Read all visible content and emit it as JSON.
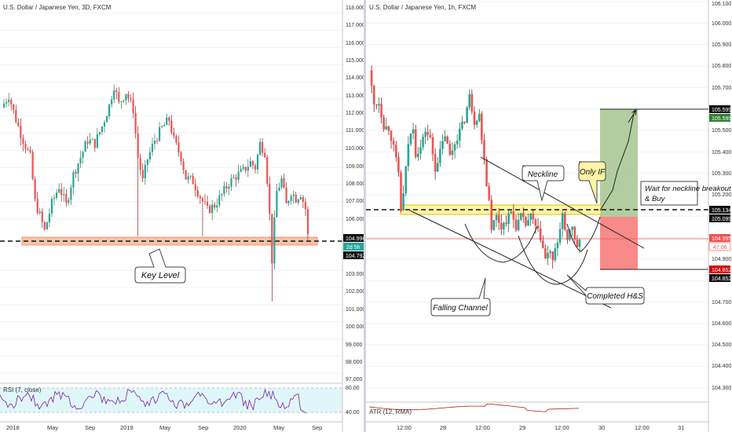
{
  "colors": {
    "up": "#26a69a",
    "down": "#ef5350",
    "upWick": "#1b5e20",
    "downWick": "#7f0000",
    "keyLevelBand": "#f8c2a8",
    "keyLevelBorder": "#f0946d",
    "necklineBand": "#fff3a8",
    "necklineBorder": "#d8c700",
    "target": "#a5c68f",
    "stop": "#f77d7d",
    "rsiLine": "#7b1fa2",
    "rsiBand": "#e0f7fa",
    "atrLine": "#b71c1c",
    "grid": "#f0f3fa",
    "axisText": "#333333"
  },
  "left_panel": {
    "title": "U.S. Dollar / Japanese Yen, 3D, FXCM",
    "price_labels": [
      "118.000",
      "117.000",
      "116.000",
      "115.000",
      "114.000",
      "113.000",
      "112.000",
      "111.000",
      "110.000",
      "109.000",
      "108.000",
      "107.000",
      "106.000",
      "104.996",
      "104.792",
      "103.000",
      "102.000",
      "101.000",
      "100.000",
      "99.000",
      "98.000",
      "97.000"
    ],
    "badge_price": "104.996",
    "badge_countdown": "2d 5h",
    "badge_level": "104.792",
    "time_labels": [
      "2018",
      "May",
      "Sep",
      "2019",
      "May",
      "Sep",
      "2020",
      "May",
      "Sep"
    ],
    "annotation_key_level": "Key Level",
    "rsi_label": "RSI (7, close)",
    "rsi_levels": [
      "80.00",
      "40.00"
    ]
  },
  "right_panel": {
    "title": "U.S. Dollar / Japanese Yen, 1h, FXCM",
    "price_labels": [
      "106.100",
      "106.000",
      "105.900",
      "105.800",
      "105.700",
      "105.600",
      "105.500",
      "105.400",
      "105.300",
      "105.200",
      "105.100",
      "105.000",
      "104.900",
      "104.800",
      "104.700",
      "104.600",
      "104.500",
      "104.400",
      "104.300"
    ],
    "badge_target_top": "105.599",
    "badge_target_bottom": "105.599",
    "badge_neckline": "105.134",
    "badge_entry": "105.099",
    "badge_price": "104.995",
    "badge_countdown": "47:06",
    "badge_stop_top": "104.852",
    "badge_stop_bottom": "104.852",
    "time_labels": [
      "12:00",
      "28",
      "12:00",
      "29",
      "12:00",
      "30",
      "12:00",
      "31"
    ],
    "annotation_neckline": "Neckline",
    "annotation_only_if": "Only IF",
    "annotation_wait": "Wait for neckline breakout & Buy",
    "annotation_falling_channel": "Falling Channel",
    "annotation_completed_hs": "Completed H&S",
    "atr_label": "ATR (12, RMA)"
  },
  "chart_data": [
    {
      "type": "candlestick",
      "title": "U.S. Dollar / Japanese Yen, 3D, FXCM",
      "ylim": [
        96.6,
        118.4
      ],
      "y_ticks": [
        118,
        117,
        116,
        115,
        114,
        113,
        112,
        111,
        110,
        109,
        108,
        107,
        106,
        103,
        102,
        101,
        100,
        99,
        98,
        97
      ],
      "x_ticks": [
        "2018",
        "May",
        "Sep",
        "2019",
        "May",
        "Sep",
        "2020",
        "May",
        "Sep"
      ],
      "close_path_approx": [
        [
          0,
          112.5
        ],
        [
          3,
          113.2
        ],
        [
          6,
          111.8
        ],
        [
          9,
          110.6
        ],
        [
          12,
          109.6
        ],
        [
          14,
          107.0
        ],
        [
          16,
          106.2
        ],
        [
          18,
          105.3
        ],
        [
          21,
          106.9
        ],
        [
          24,
          107.9
        ],
        [
          27,
          106.8
        ],
        [
          30,
          108.6
        ],
        [
          33,
          109.6
        ],
        [
          36,
          110.6
        ],
        [
          39,
          110.4
        ],
        [
          42,
          111.4
        ],
        [
          45,
          112.6
        ],
        [
          47,
          113.8
        ],
        [
          49,
          112.7
        ],
        [
          52,
          113.4
        ],
        [
          55,
          112.4
        ],
        [
          57,
          109.6
        ],
        [
          59,
          108.2
        ],
        [
          61,
          109.5
        ],
        [
          64,
          110.6
        ],
        [
          67,
          111.3
        ],
        [
          70,
          111.8
        ],
        [
          72,
          110.6
        ],
        [
          75,
          109.6
        ],
        [
          77,
          108.4
        ],
        [
          80,
          108.2
        ],
        [
          83,
          107.3
        ],
        [
          86,
          106.5
        ],
        [
          89,
          106.8
        ],
        [
          92,
          107.4
        ],
        [
          95,
          108.1
        ],
        [
          98,
          108.5
        ],
        [
          101,
          108.8
        ],
        [
          104,
          109.3
        ],
        [
          106,
          109.0
        ],
        [
          108,
          110.4
        ],
        [
          110,
          109.9
        ],
        [
          111,
          108.3
        ],
        [
          112,
          106.2
        ],
        [
          113,
          103.6
        ],
        [
          114,
          105.8
        ],
        [
          115,
          107.6
        ],
        [
          117,
          108.3
        ],
        [
          119,
          106.8
        ],
        [
          121,
          107.6
        ],
        [
          123,
          107.2
        ],
        [
          125,
          107.5
        ],
        [
          127,
          106.6
        ],
        [
          128,
          105.0
        ]
      ],
      "annotations": [
        "Key Level"
      ],
      "key_level_band": [
        104.8,
        105.2
      ],
      "key_level_line": 104.996
    },
    {
      "type": "line",
      "title": "RSI (7, close)",
      "ylim": [
        30,
        88
      ],
      "levels": [
        80,
        40
      ]
    },
    {
      "type": "candlestick",
      "title": "U.S. Dollar / Japanese Yen, 1h, FXCM",
      "ylim": [
        104.23,
        106.14
      ],
      "y_ticks": [
        106.1,
        106.0,
        105.9,
        105.8,
        105.7,
        105.6,
        105.5,
        105.4,
        105.3,
        105.2,
        105.1,
        105.0,
        104.9,
        104.8,
        104.7,
        104.6,
        104.5,
        104.4,
        104.3
      ],
      "x_ticks": [
        "12:00",
        "28",
        "12:00",
        "29",
        "12:00",
        "30",
        "12:00",
        "31"
      ],
      "close_path_approx": [
        [
          0,
          105.78
        ],
        [
          2,
          105.62
        ],
        [
          4,
          105.63
        ],
        [
          6,
          105.52
        ],
        [
          8,
          105.51
        ],
        [
          10,
          105.42
        ],
        [
          12,
          105.3
        ],
        [
          13,
          105.13
        ],
        [
          14,
          105.2
        ],
        [
          16,
          105.44
        ],
        [
          18,
          105.52
        ],
        [
          19,
          105.39
        ],
        [
          21,
          105.42
        ],
        [
          23,
          105.5
        ],
        [
          25,
          105.46
        ],
        [
          27,
          105.32
        ],
        [
          29,
          105.4
        ],
        [
          31,
          105.48
        ],
        [
          33,
          105.38
        ],
        [
          35,
          105.44
        ],
        [
          37,
          105.5
        ],
        [
          39,
          105.55
        ],
        [
          41,
          105.66
        ],
        [
          43,
          105.54
        ],
        [
          45,
          105.58
        ],
        [
          46,
          105.45
        ],
        [
          47,
          105.38
        ],
        [
          48,
          105.25
        ],
        [
          49,
          105.18
        ],
        [
          50,
          105.05
        ],
        [
          52,
          105.1
        ],
        [
          54,
          105.05
        ],
        [
          56,
          105.08
        ],
        [
          58,
          105.12
        ],
        [
          60,
          105.05
        ],
        [
          62,
          105.1
        ],
        [
          64,
          105.06
        ],
        [
          66,
          105.1
        ],
        [
          68,
          105.05
        ],
        [
          70,
          105.0
        ],
        [
          72,
          104.9
        ],
        [
          74,
          104.94
        ],
        [
          75,
          104.88
        ],
        [
          76,
          104.94
        ],
        [
          77,
          104.98
        ],
        [
          78,
          105.05
        ],
        [
          79,
          105.11
        ],
        [
          80,
          105.02
        ],
        [
          81,
          104.98
        ],
        [
          82,
          105.04
        ],
        [
          83,
          105.06
        ],
        [
          84,
          104.98
        ],
        [
          85,
          104.96
        ],
        [
          86,
          104.99
        ]
      ],
      "annotations": [
        "Neckline",
        "Only IF",
        "Wait for neckline breakout & Buy",
        "Falling Channel",
        "Completed H&S"
      ],
      "neckline_band": [
        105.12,
        105.14
      ],
      "neckline": 105.134,
      "target_zone": [
        105.099,
        105.599
      ],
      "stop_zone": [
        104.852,
        105.099
      ],
      "current_price": 104.995
    },
    {
      "type": "line",
      "title": "ATR (12, RMA)"
    }
  ]
}
